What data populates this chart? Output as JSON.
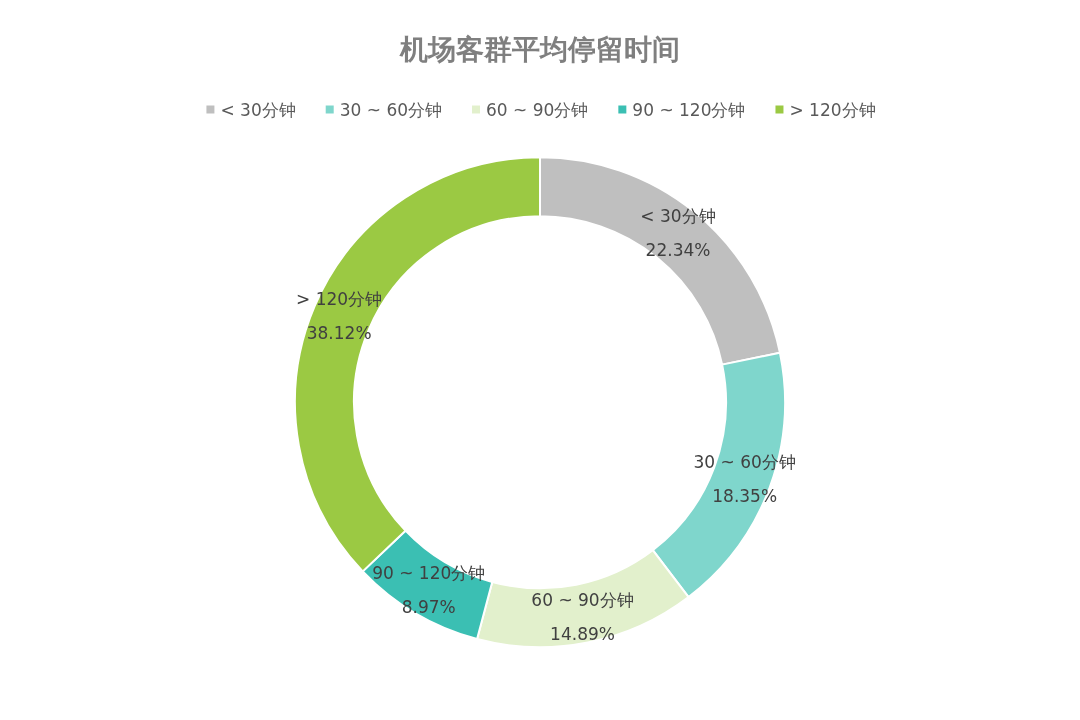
{
  "chart_data": {
    "type": "donut",
    "title": "机场客群平均停留时间",
    "categories": [
      "< 30分钟",
      "30 ~ 60分钟",
      "60 ~ 90分钟",
      "90 ~ 120分钟",
      "> 120分钟"
    ],
    "values": [
      22.34,
      18.35,
      14.89,
      8.97,
      38.12
    ],
    "value_labels": [
      "22.34%",
      "18.35%",
      "14.89%",
      "8.97%",
      "38.12%"
    ],
    "colors": [
      "#bfbfbf",
      "#7fd6cc",
      "#e2f0cc",
      "#3bbfb3",
      "#9bc943"
    ],
    "legend": "top"
  }
}
